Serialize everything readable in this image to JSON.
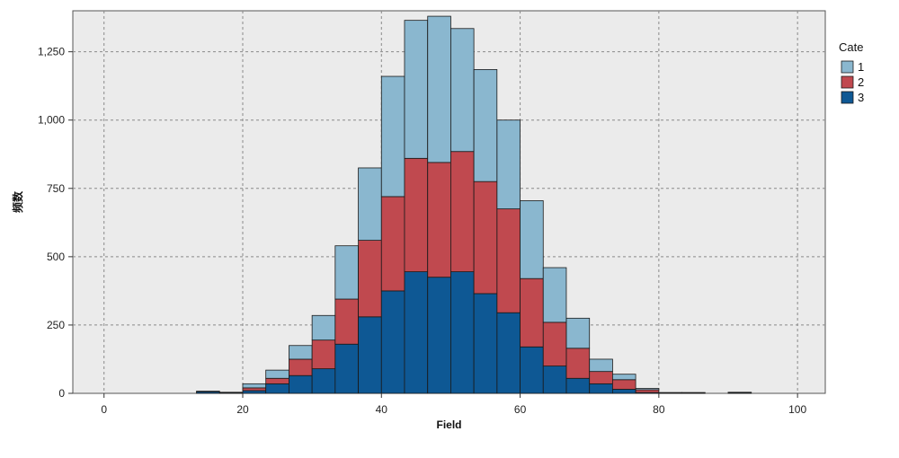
{
  "chart_data": {
    "type": "bar",
    "stacked": true,
    "title": "",
    "xlabel": "Field",
    "ylabel": "频数",
    "xlim": [
      -4.5,
      104
    ],
    "ylim": [
      0,
      1400
    ],
    "xticks": [
      0,
      20,
      40,
      60,
      80,
      100
    ],
    "xtick_labels": [
      "0",
      "20",
      "40",
      "60",
      "80",
      "100"
    ],
    "yticks": [
      0,
      250,
      500,
      750,
      1000,
      1250
    ],
    "ytick_labels": [
      "0",
      "250",
      "500",
      "750",
      "1,000",
      "1,250"
    ],
    "grid": true,
    "legend_position": "top-right",
    "legend_title": "Cate",
    "bin_width": 3.33,
    "bin_starts": [
      13.33,
      16.67,
      20.0,
      23.33,
      26.67,
      30.0,
      33.33,
      36.67,
      40.0,
      43.33,
      46.67,
      50.0,
      53.33,
      56.67,
      60.0,
      63.33,
      66.67,
      70.0,
      73.33,
      76.67,
      80.0,
      83.33,
      86.67,
      90.0
    ],
    "series": [
      {
        "name": "1",
        "color": "#8ab7cf",
        "values": [
          0,
          0,
          15,
          30,
          50,
          90,
          195,
          265,
          440,
          505,
          535,
          450,
          410,
          325,
          285,
          200,
          110,
          45,
          20,
          5,
          0,
          0,
          0,
          0
        ]
      },
      {
        "name": "2",
        "color": "#c0494f",
        "values": [
          2,
          1,
          10,
          20,
          60,
          105,
          165,
          280,
          345,
          415,
          420,
          440,
          410,
          380,
          250,
          160,
          110,
          45,
          35,
          10,
          1,
          1,
          0,
          1
        ]
      },
      {
        "name": "3",
        "color": "#0e5894",
        "values": [
          6,
          3,
          10,
          35,
          65,
          90,
          180,
          280,
          375,
          445,
          425,
          445,
          365,
          295,
          170,
          100,
          55,
          35,
          15,
          3,
          2,
          2,
          0,
          3
        ]
      }
    ]
  }
}
